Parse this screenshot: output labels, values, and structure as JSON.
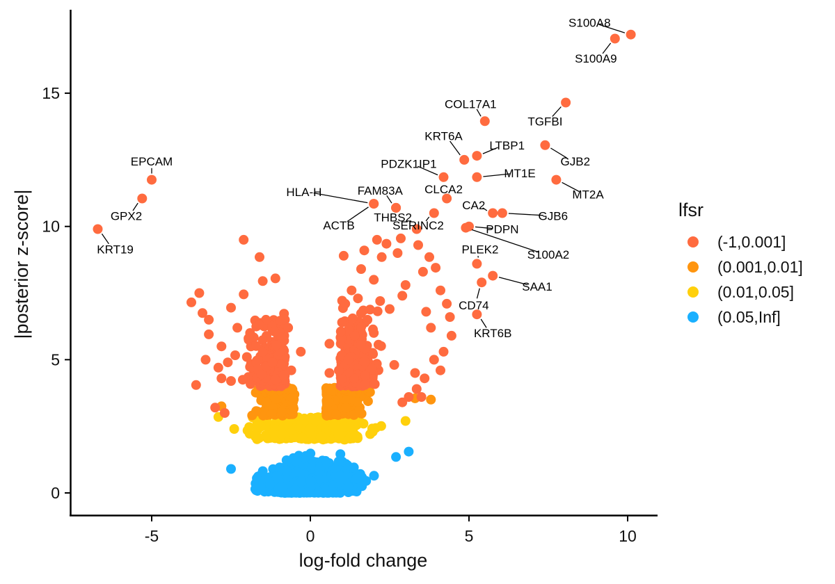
{
  "chart_data": {
    "type": "scatter",
    "xlabel": "log-fold change",
    "ylabel": "|posterior z-score|",
    "xlim": [
      -7.4,
      11
    ],
    "ylim": [
      -0.85,
      18
    ],
    "x_ticks": [
      -5,
      0,
      5,
      10
    ],
    "y_ticks": [
      0,
      5,
      10,
      15
    ],
    "grid": false,
    "legend_placement": "right",
    "legend": {
      "title": "lfsr",
      "entries": [
        {
          "label": "(-1,0.001]",
          "color": "#FF6B3F"
        },
        {
          "label": "(0.001,0.01]",
          "color": "#FF950F"
        },
        {
          "label": "(0.01,0.05]",
          "color": "#FFD00C"
        },
        {
          "label": "(0.05,Inf]",
          "color": "#1AB0FF"
        }
      ]
    },
    "labeled_genes": [
      {
        "gene": "S100A8",
        "x": 10.1,
        "y": 17.2,
        "label_x": 8.8,
        "label_y": 17.65
      },
      {
        "gene": "S100A9",
        "x": 9.6,
        "y": 17.05,
        "label_x": 9.0,
        "label_y": 16.3
      },
      {
        "gene": "TGFBI",
        "x": 8.05,
        "y": 14.65,
        "label_x": 7.4,
        "label_y": 13.95
      },
      {
        "gene": "COL17A1",
        "x": 5.5,
        "y": 13.95,
        "label_x": 5.05,
        "label_y": 14.6
      },
      {
        "gene": "KRT6A",
        "x": 4.85,
        "y": 12.5,
        "label_x": 4.2,
        "label_y": 13.4
      },
      {
        "gene": "LTBP1",
        "x": 5.25,
        "y": 12.65,
        "label_x": 6.2,
        "label_y": 13.05
      },
      {
        "gene": "GJB2",
        "x": 7.4,
        "y": 13.05,
        "label_x": 8.35,
        "label_y": 12.45
      },
      {
        "gene": "PDZK1IP1",
        "x": 4.2,
        "y": 11.85,
        "label_x": 3.1,
        "label_y": 12.35
      },
      {
        "gene": "MT1E",
        "x": 5.25,
        "y": 11.85,
        "label_x": 6.6,
        "label_y": 12.0
      },
      {
        "gene": "MT2A",
        "x": 7.75,
        "y": 11.75,
        "label_x": 8.75,
        "label_y": 11.2
      },
      {
        "gene": "EPCAM",
        "x": -5.0,
        "y": 11.75,
        "label_x": -5.0,
        "label_y": 12.45
      },
      {
        "gene": "HLA-H",
        "x": 2.0,
        "y": 10.85,
        "label_x": -0.2,
        "label_y": 11.3
      },
      {
        "gene": "FAM83A",
        "x": 2.7,
        "y": 10.7,
        "label_x": 2.2,
        "label_y": 11.35
      },
      {
        "gene": "CLCA2",
        "x": 4.3,
        "y": 11.05,
        "label_x": 4.2,
        "label_y": 11.4
      },
      {
        "gene": "GPX2",
        "x": -5.3,
        "y": 11.05,
        "label_x": -5.8,
        "label_y": 10.4
      },
      {
        "gene": "CA2",
        "x": 5.75,
        "y": 10.5,
        "label_x": 5.15,
        "label_y": 10.8
      },
      {
        "gene": "GJB6",
        "x": 6.05,
        "y": 10.5,
        "label_x": 7.65,
        "label_y": 10.4
      },
      {
        "gene": "ACTB",
        "x": 2.0,
        "y": 10.85,
        "label_x": 0.9,
        "label_y": 10.05
      },
      {
        "gene": "THBS2",
        "x": 2.7,
        "y": 10.7,
        "label_x": 2.6,
        "label_y": 10.35
      },
      {
        "gene": "SERINC2",
        "x": 3.9,
        "y": 10.5,
        "label_x": 3.4,
        "label_y": 10.05
      },
      {
        "gene": "PDPN",
        "x": 5.0,
        "y": 10.0,
        "label_x": 6.05,
        "label_y": 9.9
      },
      {
        "gene": "KRT19",
        "x": -6.7,
        "y": 9.9,
        "label_x": -6.15,
        "label_y": 9.15
      },
      {
        "gene": "S100A2",
        "x": 4.9,
        "y": 9.95,
        "label_x": 7.5,
        "label_y": 8.95
      },
      {
        "gene": "PLEK2",
        "x": 5.25,
        "y": 8.6,
        "label_x": 5.35,
        "label_y": 9.15
      },
      {
        "gene": "SAA1",
        "x": 5.75,
        "y": 8.15,
        "label_x": 7.15,
        "label_y": 7.75
      },
      {
        "gene": "CD74",
        "x": 5.4,
        "y": 7.9,
        "label_x": 5.15,
        "label_y": 7.05
      },
      {
        "gene": "KRT6B",
        "x": 5.25,
        "y": 6.7,
        "label_x": 5.75,
        "label_y": 6.0
      }
    ],
    "other_significant_points": [
      [
        -2.1,
        9.5
      ],
      [
        -1.6,
        8.85
      ],
      [
        -1.1,
        8.05
      ],
      [
        -1.5,
        7.95
      ],
      [
        -2.1,
        7.45
      ],
      [
        -3.75,
        7.15
      ],
      [
        -3.4,
        6.75
      ],
      [
        -2.5,
        6.95
      ],
      [
        -3.5,
        7.5
      ],
      [
        -3.2,
        6.5
      ],
      [
        -1.4,
        6.5
      ],
      [
        -0.8,
        6.5
      ],
      [
        -2.3,
        6.2
      ],
      [
        -1.9,
        6.0
      ],
      [
        -1.6,
        6.3
      ],
      [
        -3.2,
        5.95
      ],
      [
        -2.8,
        5.5
      ],
      [
        -3.6,
        4.05
      ],
      [
        -3.3,
        5.0
      ],
      [
        -2.6,
        4.9
      ],
      [
        -2.9,
        4.7
      ],
      [
        -2.5,
        4.2
      ],
      [
        -1.95,
        5.8
      ],
      [
        -0.7,
        6.2
      ],
      [
        -0.3,
        5.3
      ],
      [
        0.6,
        5.6
      ],
      [
        1.0,
        6.4
      ],
      [
        1.1,
        7.1
      ],
      [
        1.3,
        7.6
      ],
      [
        1.05,
        8.9
      ],
      [
        1.6,
        8.4
      ],
      [
        1.7,
        9.1
      ],
      [
        2.1,
        9.5
      ],
      [
        2.4,
        9.35
      ],
      [
        2.85,
        9.55
      ],
      [
        2.25,
        8.85
      ],
      [
        2.75,
        9.0
      ],
      [
        3.35,
        9.9
      ],
      [
        3.4,
        9.3
      ],
      [
        3.75,
        8.85
      ],
      [
        3.55,
        8.3
      ],
      [
        3.95,
        8.45
      ],
      [
        4.1,
        7.6
      ],
      [
        4.3,
        7.1
      ],
      [
        4.4,
        6.6
      ],
      [
        4.45,
        5.9
      ],
      [
        4.2,
        5.3
      ],
      [
        3.9,
        5.0
      ],
      [
        4.1,
        4.6
      ],
      [
        3.6,
        4.3
      ],
      [
        3.3,
        4.5
      ],
      [
        3.1,
        3.6
      ],
      [
        2.9,
        3.4
      ],
      [
        3.5,
        3.6
      ],
      [
        3.35,
        3.9
      ],
      [
        3.65,
        6.8
      ],
      [
        3.8,
        6.2
      ],
      [
        3.0,
        7.8
      ],
      [
        2.9,
        7.4
      ],
      [
        2.5,
        6.9
      ],
      [
        1.4,
        5.9
      ],
      [
        1.8,
        6.5
      ],
      [
        2.2,
        7.2
      ],
      [
        2.0,
        8.0
      ],
      [
        1.5,
        7.3
      ],
      [
        1.2,
        5.0
      ],
      [
        0.9,
        4.6
      ],
      [
        0.6,
        4.5
      ],
      [
        -0.6,
        4.6
      ],
      [
        -1.2,
        4.9
      ],
      [
        -1.5,
        5.3
      ],
      [
        -2.0,
        5.1
      ],
      [
        -2.8,
        4.3
      ],
      [
        -3.0,
        3.2
      ],
      [
        -2.7,
        3.0
      ]
    ]
  }
}
